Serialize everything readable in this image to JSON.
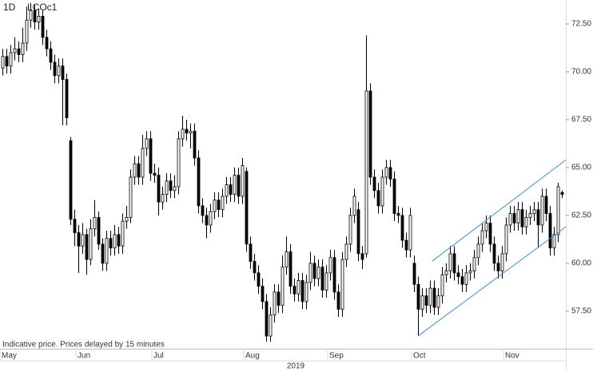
{
  "chart_data": {
    "type": "candlestick",
    "interval": "1D",
    "title": "LCOc1",
    "note": "Indicative price. Prices delayed by 15 minutes",
    "xlabel": "2019",
    "categories": [
      "May",
      null,
      null,
      null,
      null,
      null,
      null,
      null,
      null,
      null,
      null,
      null,
      null,
      null,
      null,
      null,
      null,
      null,
      null,
      "Jun",
      null,
      null,
      null,
      null,
      null,
      null,
      null,
      null,
      null,
      null,
      null,
      null,
      null,
      null,
      null,
      null,
      null,
      null,
      "Jul",
      null,
      null,
      null,
      null,
      null,
      null,
      null,
      null,
      null,
      null,
      null,
      null,
      null,
      null,
      null,
      null,
      null,
      null,
      null,
      null,
      null,
      null,
      "Aug",
      null,
      null,
      null,
      null,
      null,
      null,
      null,
      null,
      null,
      null,
      null,
      null,
      null,
      null,
      null,
      null,
      null,
      null,
      null,
      null,
      "Sep",
      null,
      null,
      null,
      null,
      null,
      null,
      null,
      null,
      null,
      null,
      null,
      null,
      null,
      null,
      null,
      null,
      null,
      null,
      null,
      null,
      "Oct",
      null,
      null,
      null,
      null,
      null,
      null,
      null,
      null,
      null,
      null,
      null,
      null,
      null,
      null,
      null,
      null,
      null,
      null,
      null,
      null,
      null,
      null,
      "Nov",
      null,
      null,
      null,
      null,
      null,
      null,
      null,
      null,
      null,
      null,
      null,
      null,
      null,
      null
    ],
    "open": [
      70.2,
      70.8,
      70.3,
      71.0,
      71.2,
      70.9,
      71.5,
      72.7,
      73.2,
      72.6,
      72.9,
      71.8,
      71.2,
      70.5,
      69.8,
      70.3,
      69.6,
      66.4,
      62.3,
      61.6,
      60.9,
      61.5,
      60.2,
      61.8,
      62.4,
      61.0,
      60.0,
      61.3,
      60.8,
      61.5,
      60.9,
      62.2,
      62.4,
      64.5,
      65.2,
      64.5,
      66.0,
      66.5,
      64.7,
      64.6,
      63.2,
      63.6,
      64.3,
      63.8,
      64.0,
      66.5,
      67.0,
      66.8,
      66.9,
      65.5,
      63.0,
      62.5,
      62.0,
      62.7,
      63.3,
      62.8,
      63.5,
      64.1,
      63.6,
      64.6,
      63.5,
      64.8,
      61.0,
      60.1,
      59.5,
      58.8,
      58.0,
      56.2,
      57.3,
      58.5,
      57.8,
      59.8,
      60.6,
      58.8,
      58.4,
      59.1,
      58.0,
      59.0,
      60.0,
      59.2,
      59.8,
      58.6,
      59.5,
      60.3,
      58.5,
      57.6,
      60.2,
      61.0,
      62.5,
      62.8,
      60.5,
      60.5,
      69.0,
      64.5,
      63.8,
      63.0,
      64.5,
      65.0,
      64.4,
      62.6,
      62.5,
      61.2,
      60.7,
      60.0,
      58.9,
      57.6,
      58.3,
      57.8,
      58.7,
      57.7,
      58.3,
      59.4,
      59.6,
      60.5,
      59.5,
      59.3,
      58.9,
      59.5,
      59.6,
      60.3,
      61.0,
      61.7,
      62.1,
      61.0,
      60.0,
      59.6,
      60.5,
      62.0,
      62.6,
      62.1,
      62.8,
      61.9,
      62.4,
      62.6,
      62.8,
      62.0,
      63.5,
      62.6,
      60.8,
      61.5,
      63.7
    ],
    "high": [
      71.2,
      71.2,
      71.4,
      71.8,
      71.6,
      72.3,
      73.4,
      73.6,
      73.5,
      73.3,
      73.2,
      72.2,
      71.6,
      70.9,
      70.7,
      70.7,
      69.9,
      66.6,
      62.8,
      62.0,
      62.1,
      61.8,
      62.3,
      63.3,
      62.7,
      61.3,
      61.7,
      61.7,
      62.0,
      61.9,
      62.6,
      63.0,
      64.9,
      65.6,
      65.6,
      66.7,
      66.9,
      66.9,
      65.2,
      65.0,
      64.0,
      64.7,
      64.7,
      64.6,
      66.9,
      67.7,
      67.5,
      67.3,
      67.3,
      65.9,
      63.4,
      62.9,
      63.1,
      63.7,
      63.7,
      63.9,
      64.5,
      64.5,
      65.0,
      65.0,
      65.5,
      65.0,
      61.4,
      60.5,
      59.9,
      59.2,
      58.4,
      57.7,
      58.9,
      58.9,
      60.4,
      61.4,
      61.0,
      59.2,
      59.5,
      59.5,
      59.4,
      60.6,
      60.4,
      60.2,
      60.2,
      59.9,
      60.7,
      60.7,
      58.9,
      60.6,
      61.4,
      62.9,
      63.9,
      63.2,
      60.9,
      71.9,
      69.4,
      64.9,
      64.2,
      64.9,
      65.4,
      65.4,
      64.8,
      63.0,
      62.9,
      61.6,
      62.9,
      60.4,
      59.3,
      58.7,
      58.7,
      59.1,
      59.1,
      58.7,
      59.8,
      60.0,
      60.9,
      60.9,
      59.9,
      59.7,
      59.9,
      60.0,
      60.7,
      61.4,
      62.1,
      62.5,
      62.5,
      61.4,
      60.4,
      60.9,
      62.4,
      63.0,
      63.0,
      63.2,
      63.2,
      62.8,
      63.0,
      63.2,
      63.2,
      63.9,
      63.9,
      63.0,
      61.9,
      64.2,
      63.8
    ],
    "low": [
      69.8,
      69.9,
      69.9,
      70.6,
      70.5,
      70.5,
      71.1,
      72.3,
      72.2,
      72.2,
      71.4,
      70.8,
      70.1,
      69.4,
      69.4,
      67.2,
      67.2,
      62.0,
      60.9,
      59.5,
      60.5,
      59.4,
      59.9,
      61.4,
      60.7,
      59.6,
      59.6,
      60.4,
      60.4,
      60.5,
      60.5,
      61.8,
      62.1,
      64.1,
      64.1,
      64.1,
      65.6,
      64.3,
      64.2,
      62.5,
      62.8,
      63.2,
      63.4,
      63.4,
      63.6,
      66.1,
      66.4,
      66.0,
      65.1,
      62.6,
      62.1,
      61.3,
      61.6,
      62.3,
      62.4,
      62.4,
      63.1,
      63.2,
      63.2,
      63.1,
      63.1,
      60.6,
      59.7,
      59.1,
      58.4,
      57.6,
      55.9,
      55.9,
      56.9,
      57.4,
      57.4,
      59.4,
      58.4,
      58.0,
      58.0,
      57.6,
      57.6,
      58.6,
      58.8,
      58.8,
      58.2,
      58.2,
      59.1,
      58.1,
      57.2,
      57.2,
      59.8,
      60.6,
      62.1,
      60.1,
      59.7,
      60.3,
      64.1,
      63.4,
      62.6,
      62.6,
      64.1,
      64.0,
      62.2,
      62.1,
      60.8,
      60.3,
      60.3,
      58.5,
      56.2,
      57.2,
      57.4,
      57.4,
      57.3,
      57.3,
      57.9,
      59.0,
      59.2,
      59.1,
      58.9,
      58.5,
      58.5,
      59.1,
      59.2,
      59.9,
      60.6,
      61.3,
      60.6,
      59.6,
      59.2,
      59.2,
      60.1,
      61.6,
      61.7,
      61.7,
      61.5,
      61.5,
      62.0,
      62.2,
      60.8,
      61.6,
      62.2,
      60.4,
      60.4,
      61.1,
      63.4
    ],
    "close": [
      70.8,
      70.3,
      71.0,
      71.2,
      70.9,
      71.5,
      72.7,
      73.2,
      72.6,
      72.9,
      71.8,
      71.2,
      70.5,
      69.8,
      70.3,
      69.6,
      67.6,
      62.3,
      61.6,
      60.9,
      61.5,
      60.2,
      61.8,
      62.4,
      61.0,
      60.0,
      61.3,
      60.8,
      61.5,
      60.9,
      62.2,
      62.4,
      64.5,
      65.2,
      64.5,
      66.0,
      66.5,
      64.7,
      64.6,
      63.2,
      63.6,
      64.3,
      63.8,
      64.0,
      66.5,
      67.0,
      66.8,
      66.9,
      65.5,
      63.0,
      62.5,
      62.0,
      62.7,
      63.3,
      62.8,
      63.5,
      64.1,
      63.6,
      64.6,
      63.5,
      65.1,
      61.0,
      60.1,
      59.5,
      58.8,
      58.0,
      56.2,
      57.3,
      58.5,
      57.8,
      59.8,
      60.6,
      58.8,
      58.4,
      59.1,
      58.0,
      59.0,
      60.0,
      59.2,
      59.8,
      58.6,
      59.5,
      60.3,
      58.5,
      57.6,
      60.2,
      61.0,
      62.5,
      63.5,
      60.5,
      60.2,
      69.0,
      64.5,
      63.8,
      63.0,
      64.5,
      65.0,
      64.4,
      62.6,
      62.5,
      61.2,
      60.7,
      62.5,
      58.9,
      57.6,
      58.3,
      57.8,
      58.7,
      57.7,
      58.3,
      59.4,
      59.6,
      60.5,
      59.5,
      59.3,
      58.9,
      59.5,
      59.6,
      60.3,
      61.0,
      61.7,
      62.1,
      61.0,
      60.0,
      59.6,
      60.5,
      62.0,
      62.6,
      62.1,
      62.8,
      61.9,
      62.4,
      62.6,
      62.8,
      62.0,
      63.5,
      62.6,
      60.8,
      61.5,
      64.0,
      63.6
    ],
    "trendlines": [
      {
        "color": "#3a8ee6",
        "x": [
          104,
          141
        ],
        "y": [
          56.2,
          61.9
        ]
      },
      {
        "color": "#3a8ee6",
        "x": [
          107.5,
          141
        ],
        "y": [
          60.1,
          65.4
        ]
      }
    ],
    "ylim": [
      55.54,
      73.75
    ],
    "yticks": [
      {
        "value": 57.5,
        "label": "57.50"
      },
      {
        "value": 60,
        "label": "60.00"
      },
      {
        "value": 62.5,
        "label": "62.50"
      },
      {
        "value": 65,
        "label": "65.00"
      },
      {
        "value": 67.5,
        "label": "67.50"
      },
      {
        "value": 70,
        "label": "70.00"
      },
      {
        "value": 72.5,
        "label": "72.50"
      }
    ],
    "grid": false
  }
}
